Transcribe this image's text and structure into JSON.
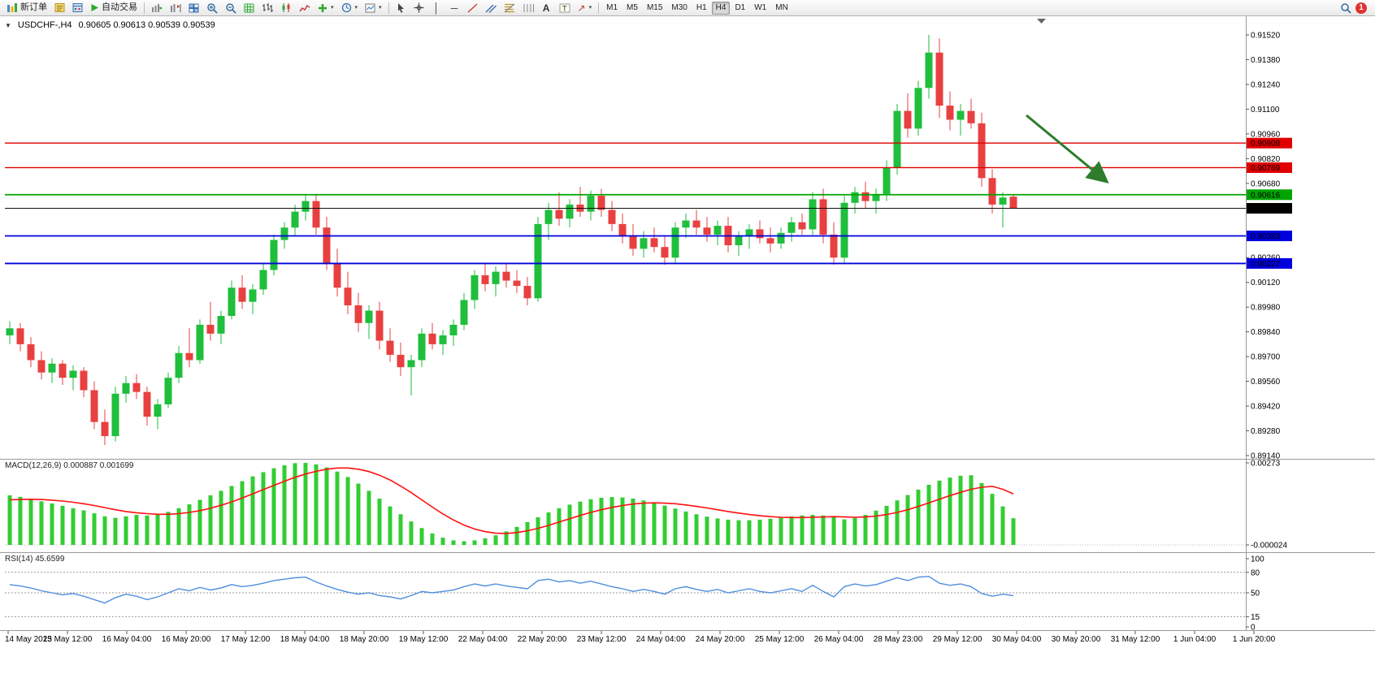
{
  "toolbar": {
    "new_order_label": "新订单",
    "auto_trading_label": "自动交易",
    "timeframes": [
      "M1",
      "M5",
      "M15",
      "M30",
      "H1",
      "H4",
      "D1",
      "W1",
      "MN"
    ],
    "active_timeframe": "H4",
    "notification_count": "1"
  },
  "chart_header": {
    "symbol": "USDCHF-,H4",
    "ohlc": "0.90605 0.90613 0.90539 0.90539"
  },
  "price_axis": [
    "0.91520",
    "0.91380",
    "0.91240",
    "0.91100",
    "0.90960",
    "0.90820",
    "0.90680",
    "0.90260",
    "0.90120",
    "0.89980",
    "0.89840",
    "0.89700",
    "0.89560",
    "0.89420",
    "0.89280",
    "0.89140"
  ],
  "hlines": [
    {
      "price": 0.90908,
      "label": "0.90908",
      "color": "#e00000",
      "width": 1.4
    },
    {
      "price": 0.90769,
      "label": "0.90769",
      "color": "#e00000",
      "width": 1.4
    },
    {
      "price": 0.90616,
      "label": "0.90616",
      "color": "#00a400",
      "width": 1.8
    },
    {
      "price": 0.90539,
      "label": "0.90539",
      "color": "#111111",
      "width": 1,
      "current": true
    },
    {
      "price": 0.90383,
      "label": "0.90383",
      "color": "#0000dd",
      "width": 1.8
    },
    {
      "price": 0.90227,
      "label": "0.90227",
      "color": "#0000dd",
      "width": 1.8
    }
  ],
  "indicators": {
    "macd": {
      "label": "MACD(12,26,9) 0.000887 0.001699",
      "axis_max": "0.00273",
      "axis_min": "-0.000024"
    },
    "rsi": {
      "label": "RSI(14) 45.6599",
      "levels": [
        "100",
        "80",
        "50",
        "15",
        "0"
      ],
      "dashed_levels": [
        80,
        50,
        15
      ]
    }
  },
  "time_axis": [
    "14 May 2023",
    "15 May 12:00",
    "16 May 04:00",
    "16 May 20:00",
    "17 May 12:00",
    "18 May 04:00",
    "18 May 20:00",
    "19 May 12:00",
    "22 May 04:00",
    "22 May 20:00",
    "23 May 12:00",
    "24 May 04:00",
    "24 May 20:00",
    "25 May 12:00",
    "26 May 04:00",
    "28 May 23:00",
    "29 May 12:00",
    "30 May 04:00",
    "30 May 20:00",
    "31 May 12:00",
    "1 Jun 04:00",
    "1 Jun 20:00"
  ],
  "annotation": {
    "type": "arrow",
    "color": "#2d7d2d"
  },
  "chart_data": {
    "type": "candlestick",
    "symbol": "USDCHF",
    "timeframe": "H4",
    "ylim": [
      0.8914,
      0.9152
    ],
    "bull_color": "#1fbe3c",
    "bear_color": "#e84040",
    "macd_color": "#32cd32",
    "macd_signal_color": "#ff1010",
    "rsi_color": "#4f8fdd",
    "candles": [
      [
        0.8982,
        0.899,
        0.8977,
        0.8986
      ],
      [
        0.8986,
        0.8989,
        0.8973,
        0.8977
      ],
      [
        0.8977,
        0.8981,
        0.8964,
        0.8968
      ],
      [
        0.8968,
        0.8973,
        0.8957,
        0.8961
      ],
      [
        0.8961,
        0.8969,
        0.8955,
        0.8966
      ],
      [
        0.8966,
        0.8968,
        0.8954,
        0.8958
      ],
      [
        0.8958,
        0.8965,
        0.8951,
        0.8962
      ],
      [
        0.8962,
        0.8964,
        0.8947,
        0.8951
      ],
      [
        0.8951,
        0.8956,
        0.8929,
        0.8933
      ],
      [
        0.8933,
        0.894,
        0.892,
        0.8925
      ],
      [
        0.8925,
        0.8953,
        0.8922,
        0.8949
      ],
      [
        0.8949,
        0.8959,
        0.8944,
        0.8955
      ],
      [
        0.8955,
        0.896,
        0.8946,
        0.895
      ],
      [
        0.895,
        0.8953,
        0.8931,
        0.8936
      ],
      [
        0.8936,
        0.8946,
        0.8929,
        0.8943
      ],
      [
        0.8943,
        0.8961,
        0.8941,
        0.8958
      ],
      [
        0.8958,
        0.8976,
        0.8955,
        0.8972
      ],
      [
        0.8972,
        0.8986,
        0.8964,
        0.8968
      ],
      [
        0.8968,
        0.8991,
        0.8966,
        0.8988
      ],
      [
        0.8988,
        0.9001,
        0.8979,
        0.8983
      ],
      [
        0.8983,
        0.8996,
        0.8977,
        0.8993
      ],
      [
        0.8993,
        0.9013,
        0.8991,
        0.9009
      ],
      [
        0.9009,
        0.9016,
        0.8997,
        0.9001
      ],
      [
        0.9001,
        0.9011,
        0.8994,
        0.9008
      ],
      [
        0.9008,
        0.9023,
        0.9005,
        0.9019
      ],
      [
        0.9019,
        0.9039,
        0.9016,
        0.9036
      ],
      [
        0.9036,
        0.9046,
        0.9031,
        0.9043
      ],
      [
        0.9043,
        0.9056,
        0.9038,
        0.9052
      ],
      [
        0.9052,
        0.9062,
        0.9047,
        0.9058
      ],
      [
        0.9058,
        0.9062,
        0.9039,
        0.9043
      ],
      [
        0.9043,
        0.9049,
        0.9019,
        0.9023
      ],
      [
        0.9023,
        0.9031,
        0.9004,
        0.9009
      ],
      [
        0.9009,
        0.9018,
        0.8994,
        0.8999
      ],
      [
        0.8999,
        0.9006,
        0.8984,
        0.8989
      ],
      [
        0.8989,
        0.8999,
        0.898,
        0.8996
      ],
      [
        0.8996,
        0.9001,
        0.8974,
        0.8979
      ],
      [
        0.8979,
        0.8986,
        0.8967,
        0.8971
      ],
      [
        0.8971,
        0.8978,
        0.8959,
        0.8964
      ],
      [
        0.8964,
        0.8971,
        0.8948,
        0.8968
      ],
      [
        0.8968,
        0.8986,
        0.8964,
        0.8983
      ],
      [
        0.8983,
        0.8989,
        0.8974,
        0.8977
      ],
      [
        0.8977,
        0.8985,
        0.8971,
        0.8982
      ],
      [
        0.8982,
        0.8991,
        0.8976,
        0.8988
      ],
      [
        0.8988,
        0.9006,
        0.8985,
        0.9002
      ],
      [
        0.9002,
        0.9019,
        0.8997,
        0.9016
      ],
      [
        0.9016,
        0.9023,
        0.9007,
        0.9011
      ],
      [
        0.9011,
        0.9021,
        0.9004,
        0.9018
      ],
      [
        0.9018,
        0.9023,
        0.9009,
        0.9013
      ],
      [
        0.9013,
        0.9019,
        0.9006,
        0.901
      ],
      [
        0.901,
        0.9015,
        0.8999,
        0.9003
      ],
      [
        0.9003,
        0.9049,
        0.9001,
        0.9045
      ],
      [
        0.9045,
        0.9057,
        0.9036,
        0.9053
      ],
      [
        0.9053,
        0.9063,
        0.9044,
        0.9048
      ],
      [
        0.9048,
        0.9059,
        0.9043,
        0.9056
      ],
      [
        0.9056,
        0.9066,
        0.9049,
        0.9052
      ],
      [
        0.9052,
        0.9064,
        0.9047,
        0.9061
      ],
      [
        0.9061,
        0.9065,
        0.9049,
        0.9053
      ],
      [
        0.9053,
        0.9058,
        0.9041,
        0.9045
      ],
      [
        0.9045,
        0.9051,
        0.9034,
        0.9038
      ],
      [
        0.9038,
        0.9045,
        0.9027,
        0.9031
      ],
      [
        0.9031,
        0.9041,
        0.9026,
        0.9037
      ],
      [
        0.9037,
        0.9043,
        0.9029,
        0.9032
      ],
      [
        0.9032,
        0.9038,
        0.9022,
        0.9026
      ],
      [
        0.9026,
        0.9046,
        0.9023,
        0.9043
      ],
      [
        0.9043,
        0.9051,
        0.9037,
        0.9047
      ],
      [
        0.9047,
        0.9053,
        0.9039,
        0.9043
      ],
      [
        0.9043,
        0.9049,
        0.9035,
        0.9039
      ],
      [
        0.9039,
        0.9047,
        0.9033,
        0.9044
      ],
      [
        0.9044,
        0.9049,
        0.9029,
        0.9033
      ],
      [
        0.9033,
        0.9041,
        0.9027,
        0.9038
      ],
      [
        0.9038,
        0.9045,
        0.9031,
        0.9042
      ],
      [
        0.9042,
        0.9047,
        0.9034,
        0.9037
      ],
      [
        0.9037,
        0.9043,
        0.9029,
        0.9034
      ],
      [
        0.9034,
        0.9043,
        0.9031,
        0.904
      ],
      [
        0.904,
        0.9049,
        0.9035,
        0.9046
      ],
      [
        0.9046,
        0.9051,
        0.9039,
        0.9042
      ],
      [
        0.9042,
        0.9063,
        0.9039,
        0.9059
      ],
      [
        0.9059,
        0.9065,
        0.9034,
        0.9039
      ],
      [
        0.9039,
        0.9046,
        0.9022,
        0.9026
      ],
      [
        0.9026,
        0.9061,
        0.9023,
        0.9057
      ],
      [
        0.9057,
        0.9066,
        0.9051,
        0.9063
      ],
      [
        0.9063,
        0.9069,
        0.9054,
        0.9058
      ],
      [
        0.9058,
        0.9065,
        0.9051,
        0.9062
      ],
      [
        0.9062,
        0.9081,
        0.9058,
        0.9077
      ],
      [
        0.9077,
        0.9113,
        0.9073,
        0.9109
      ],
      [
        0.9109,
        0.9119,
        0.9094,
        0.9099
      ],
      [
        0.9099,
        0.9126,
        0.9095,
        0.9122
      ],
      [
        0.9122,
        0.9152,
        0.9116,
        0.9142
      ],
      [
        0.9142,
        0.915,
        0.9105,
        0.9112
      ],
      [
        0.9112,
        0.912,
        0.9098,
        0.9104
      ],
      [
        0.9104,
        0.9113,
        0.9095,
        0.9109
      ],
      [
        0.9109,
        0.9116,
        0.9099,
        0.9102
      ],
      [
        0.9102,
        0.9108,
        0.9066,
        0.9071
      ],
      [
        0.9071,
        0.9076,
        0.9051,
        0.9056
      ],
      [
        0.9056,
        0.9063,
        0.9043,
        0.906
      ],
      [
        0.90605,
        0.90613,
        0.90539,
        0.90539
      ]
    ],
    "macd_histogram": [
      0.00165,
      0.0016,
      0.00152,
      0.00145,
      0.00138,
      0.0013,
      0.00122,
      0.00115,
      0.00105,
      0.00095,
      0.0009,
      0.00095,
      0.001,
      0.00098,
      0.00102,
      0.0011,
      0.00122,
      0.00135,
      0.0015,
      0.00165,
      0.0018,
      0.00196,
      0.00212,
      0.00228,
      0.00242,
      0.00255,
      0.00265,
      0.00272,
      0.00273,
      0.00268,
      0.00258,
      0.00244,
      0.00226,
      0.00204,
      0.0018,
      0.00154,
      0.00128,
      0.00102,
      0.00078,
      0.00056,
      0.00038,
      0.00024,
      0.00015,
      0.00012,
      0.00015,
      0.00022,
      0.00032,
      0.00045,
      0.0006,
      0.00076,
      0.00092,
      0.00108,
      0.00122,
      0.00134,
      0.00144,
      0.00152,
      0.00157,
      0.00159,
      0.00158,
      0.00154,
      0.00148,
      0.0014,
      0.00131,
      0.00121,
      0.00111,
      0.00102,
      0.00094,
      0.00088,
      0.00084,
      0.00082,
      0.00082,
      0.00084,
      0.00087,
      0.00091,
      0.00095,
      0.00098,
      0.001,
      0.00098,
      0.00092,
      0.00085,
      0.0009,
      0.001,
      0.00114,
      0.0013,
      0.00148,
      0.00166,
      0.00184,
      0.002,
      0.00214,
      0.00224,
      0.0023,
      0.00232,
      0.00206,
      0.0017,
      0.00128,
      0.000887
    ],
    "macd_signal": [
      0.0015,
      0.00151,
      0.00152,
      0.00151,
      0.00149,
      0.00146,
      0.00142,
      0.00137,
      0.00131,
      0.00124,
      0.00117,
      0.00111,
      0.00107,
      0.00104,
      0.00102,
      0.00102,
      0.00104,
      0.00108,
      0.00114,
      0.00122,
      0.00132,
      0.00143,
      0.00156,
      0.0017,
      0.00184,
      0.00198,
      0.00212,
      0.00225,
      0.00236,
      0.00245,
      0.00252,
      0.00256,
      0.00256,
      0.00252,
      0.00244,
      0.00232,
      0.00216,
      0.00196,
      0.00174,
      0.0015,
      0.00126,
      0.00103,
      0.00083,
      0.00066,
      0.00053,
      0.00044,
      0.00039,
      0.00038,
      0.00041,
      0.00047,
      0.00055,
      0.00065,
      0.00076,
      0.00087,
      0.00098,
      0.00108,
      0.00117,
      0.00125,
      0.00131,
      0.00136,
      0.00139,
      0.0014,
      0.00139,
      0.00137,
      0.00133,
      0.00128,
      0.00123,
      0.00117,
      0.00111,
      0.00106,
      0.00101,
      0.00097,
      0.00094,
      0.00092,
      0.00091,
      0.00091,
      0.00092,
      0.00093,
      0.00094,
      0.00093,
      0.00092,
      0.00093,
      0.00096,
      0.00101,
      0.00108,
      0.00117,
      0.00128,
      0.0014,
      0.00152,
      0.00164,
      0.00175,
      0.00185,
      0.00192,
      0.00195,
      0.00185,
      0.0017
    ],
    "rsi": [
      62,
      60,
      57,
      53,
      50,
      47,
      49,
      45,
      40,
      35,
      43,
      48,
      45,
      40,
      44,
      50,
      56,
      53,
      58,
      54,
      57,
      62,
      59,
      61,
      64,
      68,
      70,
      72,
      73,
      66,
      60,
      55,
      51,
      48,
      50,
      46,
      44,
      41,
      46,
      52,
      50,
      52,
      54,
      59,
      63,
      60,
      63,
      60,
      58,
      56,
      68,
      70,
      66,
      68,
      64,
      67,
      63,
      59,
      56,
      52,
      55,
      52,
      48,
      56,
      59,
      55,
      52,
      55,
      50,
      53,
      56,
      52,
      50,
      53,
      56,
      52,
      61,
      52,
      44,
      59,
      63,
      60,
      62,
      67,
      72,
      68,
      73,
      74,
      64,
      61,
      63,
      59,
      49,
      45,
      48,
      45.66
    ]
  }
}
